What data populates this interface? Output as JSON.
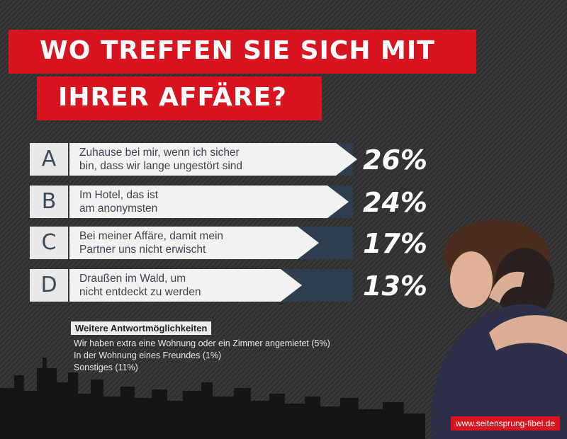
{
  "title_line1": "WO TREFFEN SIE SICH MIT",
  "title_line2": "IHRER AFFÄRE?",
  "chart_data": {
    "type": "bar",
    "title": "WO TREFFEN SIE SICH MIT IHRER AFFÄRE?",
    "categories": [
      "A",
      "B",
      "C",
      "D"
    ],
    "answers": [
      "Zuhause bei mir, wenn ich sicher bin, dass wir lange ungestört sind",
      "Im Hotel, das ist am anonymsten",
      "Bei meiner Affäre, damit mein Partner uns nicht erwischt",
      "Draußen im Wald, um nicht entdeckt zu werden"
    ],
    "values": [
      26,
      24,
      17,
      13
    ],
    "value_labels": [
      "26%",
      "24%",
      "17%",
      "13%"
    ],
    "unit": "%",
    "ylim": [
      0,
      30
    ],
    "grid": false
  },
  "rows": [
    {
      "letter": "A",
      "line1": "Zuhause bei mir, wenn ich sicher",
      "line2": "bin, dass wir lange ungestört sind",
      "pct": "26%"
    },
    {
      "letter": "B",
      "line1": "Im Hotel, das ist",
      "line2": "am anonymsten",
      "pct": "24%"
    },
    {
      "letter": "C",
      "line1": "Bei meiner Affäre, damit mein",
      "line2": "Partner uns nicht erwischt",
      "pct": "17%"
    },
    {
      "letter": "D",
      "line1": "Draußen im Wald, um",
      "line2": "nicht entdeckt zu werden",
      "pct": "13%"
    }
  ],
  "more": {
    "title": "Weitere Antwortmöglichkeiten",
    "items": [
      "Wir haben extra eine Wohnung oder ein Zimmer angemietet (5%)",
      "In der Wohnung eines Freundes (1%)",
      "Sonstiges (11%)"
    ]
  },
  "url": "www.seitensprung-fibel.de",
  "colors": {
    "accent": "#d7141f",
    "dark_stripe": "#2e3d4f",
    "bar": "#f2f2f2",
    "background": "#333333"
  }
}
